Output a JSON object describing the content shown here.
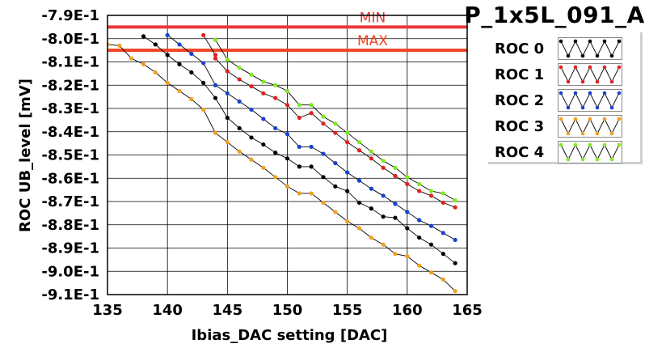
{
  "chart_data": {
    "type": "line",
    "title": "P_1x5L_091_A",
    "xlabel": "Ibias_DAC setting [DAC]",
    "ylabel": "ROC UB_level [mV]",
    "xlim": [
      135,
      165
    ],
    "ylim": [
      -0.91,
      -0.79
    ],
    "xticks": [
      135,
      140,
      145,
      150,
      155,
      160,
      165
    ],
    "xtick_labels": [
      "135",
      "140",
      "145",
      "150",
      "155",
      "160",
      "165"
    ],
    "yticks": [
      -0.79,
      -0.8,
      -0.81,
      -0.82,
      -0.83,
      -0.84,
      -0.85,
      -0.86,
      -0.87,
      -0.88,
      -0.89,
      -0.9,
      -0.91
    ],
    "ytick_labels": [
      "-7.9E-1",
      "-8.0E-1",
      "-8.1E-1",
      "-8.2E-1",
      "-8.3E-1",
      "-8.4E-1",
      "-8.5E-1",
      "-8.6E-1",
      "-8.7E-1",
      "-8.8E-1",
      "-8.9E-1",
      "-9.0E-1",
      "-9.1E-1"
    ],
    "grid": true,
    "legend_position": "right",
    "reference_lines": [
      {
        "label": "MIN",
        "y": -0.795,
        "color": "#e83838"
      },
      {
        "label": "MAX",
        "y": -0.805,
        "color": "#ee4422"
      }
    ],
    "series": [
      {
        "name": "ROC 0",
        "color": "#000000",
        "x": [
          138,
          139,
          140,
          141,
          142,
          143,
          144,
          145,
          146,
          147,
          148,
          149,
          150,
          151,
          152,
          153,
          154,
          155,
          156,
          157,
          158,
          159,
          160,
          161,
          162,
          163,
          164
        ],
        "y": [
          -0.799,
          -0.8025,
          -0.807,
          -0.811,
          -0.8145,
          -0.819,
          -0.8255,
          -0.834,
          -0.8385,
          -0.8425,
          -0.8455,
          -0.849,
          -0.8515,
          -0.855,
          -0.855,
          -0.8595,
          -0.8635,
          -0.8655,
          -0.8705,
          -0.873,
          -0.8765,
          -0.877,
          -0.8815,
          -0.8855,
          -0.8885,
          -0.8925,
          -0.8965
        ]
      },
      {
        "name": "ROC 1",
        "color": "#e02020",
        "x": [
          143,
          144,
          144,
          145,
          146,
          147,
          148,
          149,
          150,
          151,
          152,
          153,
          154,
          155,
          156,
          157,
          158,
          159,
          160,
          161,
          162,
          163,
          164
        ],
        "y": [
          -0.7985,
          -0.807,
          -0.8085,
          -0.814,
          -0.8175,
          -0.8205,
          -0.8235,
          -0.8255,
          -0.8285,
          -0.834,
          -0.832,
          -0.8365,
          -0.8405,
          -0.8445,
          -0.848,
          -0.8515,
          -0.8555,
          -0.859,
          -0.8625,
          -0.8655,
          -0.8675,
          -0.8705,
          -0.8725
        ]
      },
      {
        "name": "ROC 2",
        "color": "#1a3fd0",
        "x": [
          140,
          141,
          142,
          143,
          144,
          145,
          146,
          147,
          148,
          149,
          150,
          151,
          152,
          153,
          154,
          155,
          156,
          157,
          158,
          159,
          160,
          161,
          162,
          163,
          164
        ],
        "y": [
          -0.7985,
          -0.8025,
          -0.8065,
          -0.8105,
          -0.82,
          -0.8235,
          -0.827,
          -0.8305,
          -0.8345,
          -0.8385,
          -0.841,
          -0.8465,
          -0.8465,
          -0.8495,
          -0.8535,
          -0.8575,
          -0.861,
          -0.8645,
          -0.8675,
          -0.871,
          -0.8745,
          -0.878,
          -0.8805,
          -0.8835,
          -0.8865
        ]
      },
      {
        "name": "ROC 3",
        "color": "#f0a020",
        "x": [
          135,
          136,
          137,
          138,
          139,
          140,
          141,
          142,
          143,
          144,
          145,
          146,
          147,
          148,
          149,
          150,
          151,
          152,
          153,
          154,
          155,
          156,
          157,
          158,
          159,
          160,
          161,
          162,
          163,
          164
        ],
        "y": [
          -0.8025,
          -0.803,
          -0.8085,
          -0.811,
          -0.8145,
          -0.819,
          -0.8225,
          -0.826,
          -0.8305,
          -0.8405,
          -0.8445,
          -0.8485,
          -0.852,
          -0.8555,
          -0.8595,
          -0.8635,
          -0.8665,
          -0.8665,
          -0.8705,
          -0.8745,
          -0.8785,
          -0.8815,
          -0.8855,
          -0.8885,
          -0.8925,
          -0.8935,
          -0.8975,
          -0.9005,
          -0.9035,
          -0.9085
        ]
      },
      {
        "name": "ROC 4",
        "color": "#7ee820",
        "x": [
          144,
          145,
          146,
          147,
          148,
          149,
          150,
          151,
          152,
          153,
          154,
          155,
          156,
          157,
          158,
          159,
          160,
          161,
          162,
          163,
          164
        ],
        "y": [
          -0.8005,
          -0.809,
          -0.8125,
          -0.8155,
          -0.8185,
          -0.82,
          -0.8225,
          -0.8285,
          -0.8285,
          -0.8335,
          -0.8365,
          -0.8405,
          -0.8445,
          -0.8485,
          -0.8525,
          -0.8555,
          -0.8595,
          -0.8625,
          -0.8655,
          -0.8665,
          -0.8695
        ]
      }
    ]
  }
}
